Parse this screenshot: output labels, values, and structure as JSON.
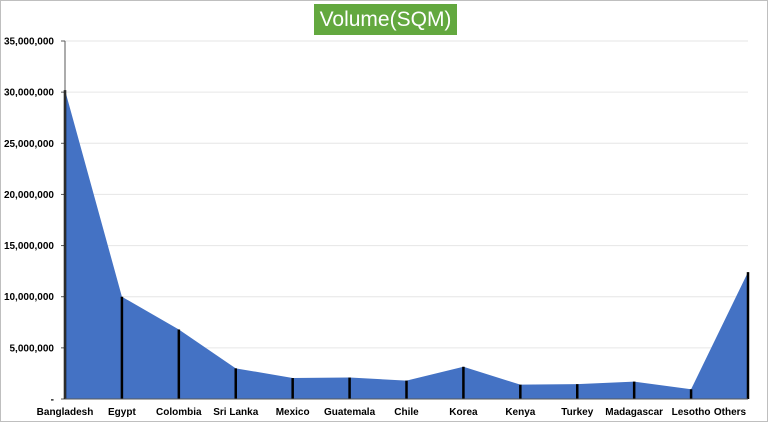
{
  "chart_data": {
    "type": "area",
    "title": "Volume(SQM)",
    "xlabel": "",
    "ylabel": "",
    "categories": [
      "Bangladesh",
      "Egypt",
      "Colombia",
      "Sri Lanka",
      "Mexico",
      "Guatemala",
      "Chile",
      "Korea",
      "Kenya",
      "Turkey",
      "Madagascar",
      "Lesotho",
      "Others"
    ],
    "values": [
      30200000,
      10000000,
      6800000,
      3000000,
      2050000,
      2100000,
      1800000,
      3150000,
      1400000,
      1450000,
      1700000,
      950000,
      12400000
    ],
    "ylim": [
      0,
      35000000
    ],
    "yticks": [
      0,
      5000000,
      10000000,
      15000000,
      20000000,
      25000000,
      30000000,
      35000000
    ],
    "ytick_labels": [
      "-",
      "5,000,000",
      "10,000,000",
      "15,000,000",
      "20,000,000",
      "25,000,000",
      "30,000,000",
      "35,000,000"
    ],
    "grid": true,
    "legend": "none",
    "colors": {
      "area": "#4472c4",
      "drop_lines": "#000000",
      "grid": "#e6e6e6",
      "title_bg": "#63a83f"
    }
  }
}
